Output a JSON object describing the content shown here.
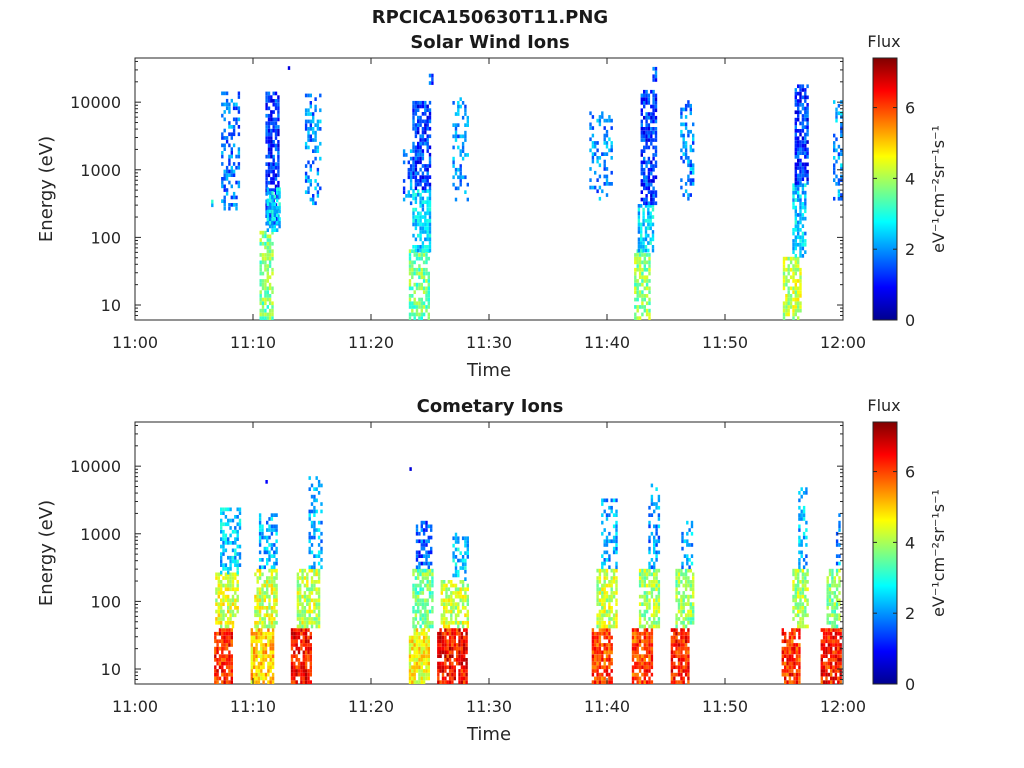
{
  "figure": {
    "title": "RPCICA150630T11.PNG"
  },
  "chart_data": [
    {
      "type": "heatmap",
      "title": "Solar Wind Ions",
      "xlabel": "Time",
      "ylabel": "Energy (eV)",
      "xticks": [
        "11:00",
        "11:10",
        "11:20",
        "11:30",
        "11:40",
        "11:50",
        "12:00"
      ],
      "xlim": [
        "11:00",
        "12:00"
      ],
      "yscale": "log",
      "yticks": [
        "10",
        "100",
        "1000",
        "10000"
      ],
      "ylim": [
        6,
        45000
      ],
      "colorbar": {
        "label": "Flux",
        "unit": "eV⁻¹cm⁻²sr⁻¹s⁻¹",
        "ticks": [
          "0",
          "2",
          "4",
          "6"
        ],
        "range": [
          0,
          7.4
        ],
        "colormap": "jet"
      },
      "bursts": [
        {
          "time_min": 6.5,
          "width_min": 0.1,
          "emin": 280,
          "emax": 350,
          "flux": 2.4,
          "density": 0.9
        },
        {
          "time_min": 8.0,
          "width_min": 1.4,
          "emin": 250,
          "emax": 13000,
          "flux": 1.8,
          "density": 0.45
        },
        {
          "time_min": 11.1,
          "width_min": 1.1,
          "emin": 6,
          "emax": 120,
          "flux": 3.7,
          "density": 0.7
        },
        {
          "time_min": 11.6,
          "width_min": 1.1,
          "emin": 150,
          "emax": 13000,
          "flux": 1.3,
          "density": 0.75
        },
        {
          "time_min": 11.7,
          "width_min": 1.1,
          "emin": 120,
          "emax": 500,
          "flux": 2.5,
          "density": 0.7
        },
        {
          "time_min": 13.0,
          "width_min": 0.1,
          "emin": 30000,
          "emax": 34000,
          "flux": 1.3,
          "density": 1.0
        },
        {
          "time_min": 15.0,
          "width_min": 1.2,
          "emin": 300,
          "emax": 15000,
          "flux": 1.9,
          "density": 0.35
        },
        {
          "time_min": 23.0,
          "width_min": 0.6,
          "emin": 300,
          "emax": 2000,
          "flux": 1.8,
          "density": 0.4
        },
        {
          "time_min": 24.0,
          "width_min": 1.6,
          "emin": 6,
          "emax": 60,
          "flux": 3.6,
          "density": 0.7
        },
        {
          "time_min": 24.2,
          "width_min": 1.4,
          "emin": 60,
          "emax": 500,
          "flux": 2.5,
          "density": 0.7
        },
        {
          "time_min": 24.2,
          "width_min": 1.4,
          "emin": 500,
          "emax": 10000,
          "flux": 1.3,
          "density": 0.75
        },
        {
          "time_min": 25.0,
          "width_min": 0.2,
          "emin": 18000,
          "emax": 24000,
          "flux": 1.5,
          "density": 0.9
        },
        {
          "time_min": 27.5,
          "width_min": 1.2,
          "emin": 300,
          "emax": 11000,
          "flux": 1.9,
          "density": 0.35
        },
        {
          "time_min": 39.5,
          "width_min": 2.0,
          "emin": 350,
          "emax": 7000,
          "flux": 1.9,
          "density": 0.3
        },
        {
          "time_min": 43.0,
          "width_min": 1.4,
          "emin": 6,
          "emax": 60,
          "flux": 3.8,
          "density": 0.7
        },
        {
          "time_min": 43.3,
          "width_min": 1.4,
          "emin": 60,
          "emax": 300,
          "flux": 2.5,
          "density": 0.7
        },
        {
          "time_min": 43.5,
          "width_min": 1.3,
          "emin": 300,
          "emax": 15000,
          "flux": 1.3,
          "density": 0.7
        },
        {
          "time_min": 44.0,
          "width_min": 0.3,
          "emin": 20000,
          "emax": 33000,
          "flux": 1.4,
          "density": 0.8
        },
        {
          "time_min": 46.8,
          "width_min": 1.2,
          "emin": 350,
          "emax": 10000,
          "flux": 1.9,
          "density": 0.35
        },
        {
          "time_min": 55.7,
          "width_min": 1.6,
          "emin": 6,
          "emax": 50,
          "flux": 4.2,
          "density": 0.7
        },
        {
          "time_min": 56.3,
          "width_min": 1.2,
          "emin": 50,
          "emax": 600,
          "flux": 2.4,
          "density": 0.7
        },
        {
          "time_min": 56.5,
          "width_min": 1.2,
          "emin": 600,
          "emax": 18000,
          "flux": 1.3,
          "density": 0.75
        },
        {
          "time_min": 59.6,
          "width_min": 0.9,
          "emin": 350,
          "emax": 10000,
          "flux": 2.0,
          "density": 0.4
        }
      ]
    },
    {
      "type": "heatmap",
      "title": "Cometary Ions",
      "xlabel": "Time",
      "ylabel": "Energy (eV)",
      "xticks": [
        "11:00",
        "11:10",
        "11:20",
        "11:30",
        "11:40",
        "11:50",
        "12:00"
      ],
      "xlim": [
        "11:00",
        "12:00"
      ],
      "yscale": "log",
      "yticks": [
        "10",
        "100",
        "1000",
        "10000"
      ],
      "ylim": [
        6,
        45000
      ],
      "colorbar": {
        "label": "Flux",
        "unit": "eV⁻¹cm⁻²sr⁻¹s⁻¹",
        "ticks": [
          "0",
          "2",
          "4",
          "6"
        ],
        "range": [
          0,
          7.4
        ],
        "colormap": "jet"
      },
      "bursts": [
        {
          "time_min": 7.5,
          "width_min": 1.6,
          "emin": 6,
          "emax": 40,
          "flux": 6.2,
          "density": 0.85
        },
        {
          "time_min": 7.7,
          "width_min": 1.8,
          "emin": 40,
          "emax": 250,
          "flux": 4.4,
          "density": 0.75
        },
        {
          "time_min": 8.0,
          "width_min": 1.6,
          "emin": 250,
          "emax": 2200,
          "flux": 2.4,
          "density": 0.45
        },
        {
          "time_min": 10.7,
          "width_min": 1.8,
          "emin": 6,
          "emax": 40,
          "flux": 5.0,
          "density": 0.85
        },
        {
          "time_min": 11.0,
          "width_min": 1.8,
          "emin": 40,
          "emax": 300,
          "flux": 4.3,
          "density": 0.75
        },
        {
          "time_min": 11.2,
          "width_min": 1.4,
          "emin": 300,
          "emax": 2000,
          "flux": 2.2,
          "density": 0.55
        },
        {
          "time_min": 11.1,
          "width_min": 0.1,
          "emin": 5500,
          "emax": 6200,
          "flux": 1.4,
          "density": 1.0
        },
        {
          "time_min": 14.0,
          "width_min": 1.6,
          "emin": 6,
          "emax": 40,
          "flux": 6.4,
          "density": 0.85
        },
        {
          "time_min": 14.6,
          "width_min": 1.8,
          "emin": 40,
          "emax": 300,
          "flux": 4.2,
          "density": 0.7
        },
        {
          "time_min": 15.2,
          "width_min": 1.0,
          "emin": 300,
          "emax": 7000,
          "flux": 2.2,
          "density": 0.4
        },
        {
          "time_min": 23.3,
          "width_min": 0.1,
          "emin": 8500,
          "emax": 9500,
          "flux": 1.3,
          "density": 1.0
        },
        {
          "time_min": 24.0,
          "width_min": 1.6,
          "emin": 6,
          "emax": 40,
          "flux": 4.6,
          "density": 0.85
        },
        {
          "time_min": 24.3,
          "width_min": 1.6,
          "emin": 40,
          "emax": 300,
          "flux": 3.6,
          "density": 0.75
        },
        {
          "time_min": 24.4,
          "width_min": 1.2,
          "emin": 300,
          "emax": 1500,
          "flux": 1.5,
          "density": 0.6
        },
        {
          "time_min": 26.8,
          "width_min": 2.4,
          "emin": 6,
          "emax": 40,
          "flux": 6.4,
          "density": 0.85
        },
        {
          "time_min": 27.0,
          "width_min": 2.2,
          "emin": 40,
          "emax": 200,
          "flux": 4.2,
          "density": 0.7
        },
        {
          "time_min": 27.5,
          "width_min": 1.2,
          "emin": 200,
          "emax": 1000,
          "flux": 2.4,
          "density": 0.45
        },
        {
          "time_min": 39.6,
          "width_min": 1.8,
          "emin": 6,
          "emax": 40,
          "flux": 6.0,
          "density": 0.85
        },
        {
          "time_min": 40.0,
          "width_min": 1.8,
          "emin": 40,
          "emax": 300,
          "flux": 4.2,
          "density": 0.75
        },
        {
          "time_min": 40.2,
          "width_min": 1.4,
          "emin": 300,
          "emax": 3000,
          "flux": 2.2,
          "density": 0.45
        },
        {
          "time_min": 43.0,
          "width_min": 1.8,
          "emin": 6,
          "emax": 40,
          "flux": 6.0,
          "density": 0.85
        },
        {
          "time_min": 43.6,
          "width_min": 1.8,
          "emin": 40,
          "emax": 300,
          "flux": 4.0,
          "density": 0.75
        },
        {
          "time_min": 44.0,
          "width_min": 1.0,
          "emin": 300,
          "emax": 5000,
          "flux": 2.0,
          "density": 0.45
        },
        {
          "time_min": 46.2,
          "width_min": 1.6,
          "emin": 6,
          "emax": 40,
          "flux": 6.3,
          "density": 0.85
        },
        {
          "time_min": 46.6,
          "width_min": 1.6,
          "emin": 40,
          "emax": 300,
          "flux": 3.9,
          "density": 0.7
        },
        {
          "time_min": 46.8,
          "width_min": 1.0,
          "emin": 300,
          "emax": 1500,
          "flux": 2.2,
          "density": 0.45
        },
        {
          "time_min": 55.6,
          "width_min": 1.6,
          "emin": 6,
          "emax": 40,
          "flux": 6.1,
          "density": 0.85
        },
        {
          "time_min": 56.4,
          "width_min": 1.4,
          "emin": 40,
          "emax": 300,
          "flux": 4.0,
          "density": 0.7
        },
        {
          "time_min": 56.6,
          "width_min": 0.8,
          "emin": 300,
          "emax": 4500,
          "flux": 2.2,
          "density": 0.4
        },
        {
          "time_min": 59.0,
          "width_min": 1.8,
          "emin": 6,
          "emax": 40,
          "flux": 6.3,
          "density": 0.85
        },
        {
          "time_min": 59.4,
          "width_min": 1.6,
          "emin": 40,
          "emax": 300,
          "flux": 3.8,
          "density": 0.7
        },
        {
          "time_min": 59.8,
          "width_min": 0.8,
          "emin": 300,
          "emax": 2000,
          "flux": 2.1,
          "density": 0.45
        }
      ]
    }
  ]
}
